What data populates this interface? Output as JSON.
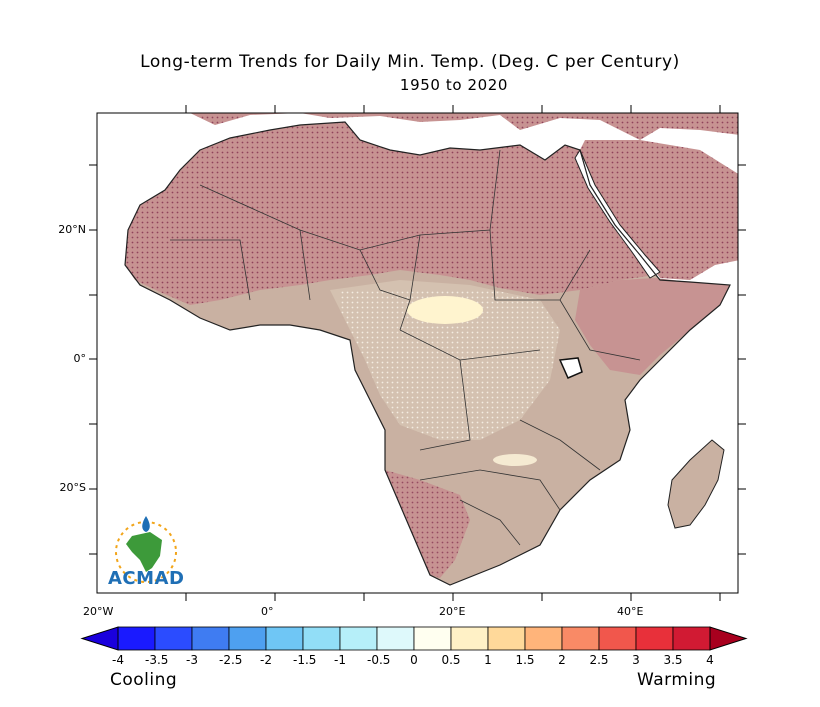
{
  "title": "Long-term Trends for Daily Min. Temp. (Deg. C per Century)",
  "subtitle": "1950 to 2020",
  "lat_ticks": [
    {
      "label": "20°N",
      "lat": 20
    },
    {
      "label": "0°",
      "lat": 0
    },
    {
      "label": "20°S",
      "lat": -20
    }
  ],
  "lon_ticks": [
    {
      "label": "20°W",
      "lon": -20
    },
    {
      "label": "0°",
      "lon": 0
    },
    {
      "label": "20°E",
      "lon": 20
    },
    {
      "label": "40°E",
      "lon": 40
    }
  ],
  "colorbar": {
    "ticks": [
      "-4",
      "-3.5",
      "-3",
      "-2.5",
      "-2",
      "-1.5",
      "-1",
      "-0.5",
      "0",
      "0.5",
      "1",
      "1.5",
      "2",
      "2.5",
      "3",
      "3.5",
      "4"
    ],
    "colors": [
      "#1a1aff",
      "#2b4cff",
      "#3f7cf2",
      "#4ea0f0",
      "#6fc6f5",
      "#92def7",
      "#b6eff9",
      "#def9fb",
      "#fffff0",
      "#fff1c6",
      "#ffd99a",
      "#ffb47a",
      "#f98a66",
      "#f1574c",
      "#e8303a",
      "#d11a33"
    ],
    "low_end_color": "#1a00dd",
    "high_end_color": "#a8001e",
    "left_label": "Cooling",
    "right_label": "Warming"
  },
  "logo": {
    "text": "ACMAD"
  },
  "colors": {
    "land_base": "#c9b1a2",
    "land_warm": "#c79392",
    "land_cool": "#e4d7c6",
    "land_pale": "#fff4cf",
    "dots": "#8a3a55",
    "dots_light": "#f4ede2"
  }
}
